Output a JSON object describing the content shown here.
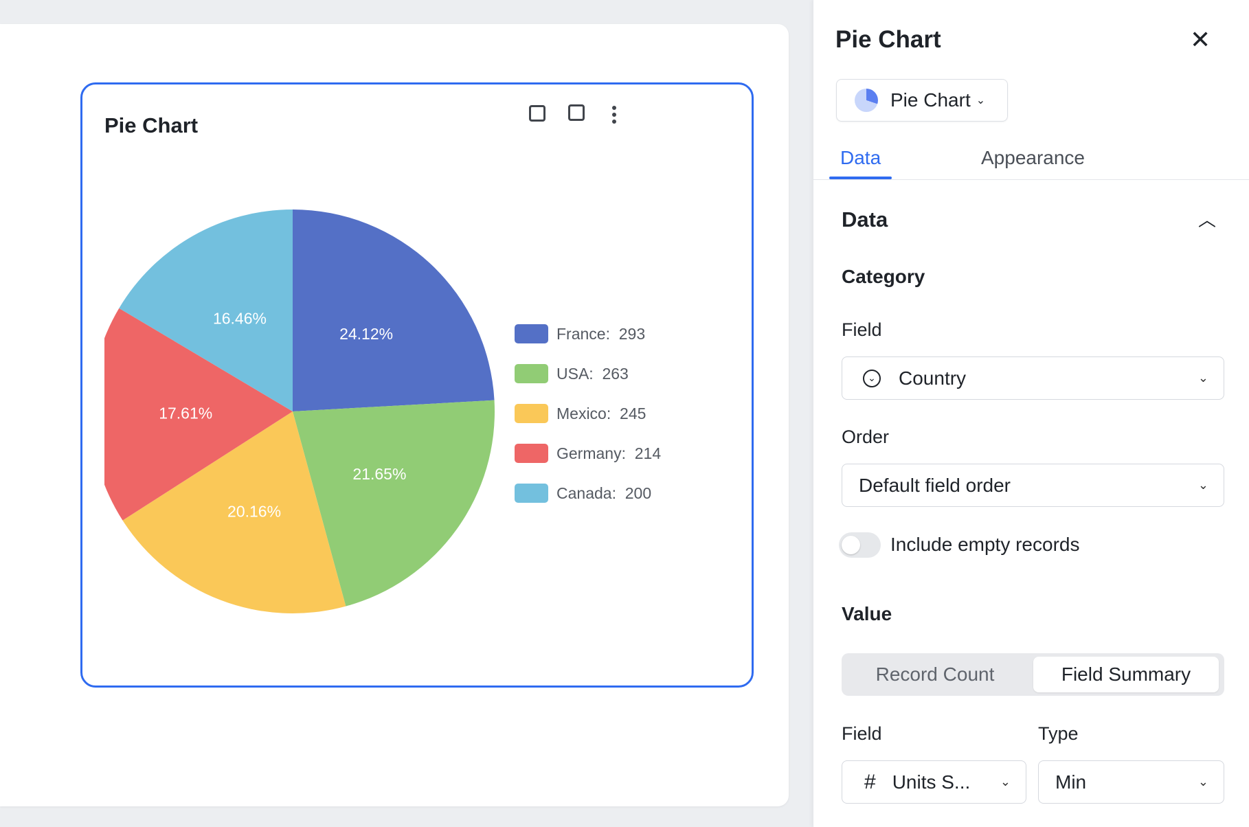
{
  "chart_card": {
    "title": "Pie Chart"
  },
  "chart_data": {
    "type": "pie",
    "title": "Pie Chart",
    "categories": [
      "France",
      "USA",
      "Mexico",
      "Germany",
      "Canada"
    ],
    "values": [
      293,
      263,
      245,
      214,
      200
    ],
    "percent_labels": [
      "24.12%",
      "21.65%",
      "20.16%",
      "17.61%",
      "16.46%"
    ],
    "legend_labels": [
      "France:  293",
      "USA:  263",
      "Mexico:  245",
      "Germany:  214",
      "Canada:  200"
    ],
    "colors": [
      "#5470c6",
      "#91cc75",
      "#fac858",
      "#ee6666",
      "#73c0de"
    ],
    "legend_position": "right"
  },
  "panel": {
    "title": "Pie Chart",
    "chart_type": "Pie Chart",
    "tabs": [
      "Data",
      "Appearance"
    ],
    "section": "Data",
    "category_heading": "Category",
    "field_label": "Field",
    "field_value": "Country",
    "order_label": "Order",
    "order_value": "Default field order",
    "include_empty": "Include empty records",
    "include_empty_on": false,
    "value_heading": "Value",
    "value_modes": [
      "Record Count",
      "Field Summary"
    ],
    "value_field_label": "Field",
    "value_field": "Units S...",
    "type_label": "Type",
    "type_value": "Min"
  },
  "accent": "#2f6bf0"
}
